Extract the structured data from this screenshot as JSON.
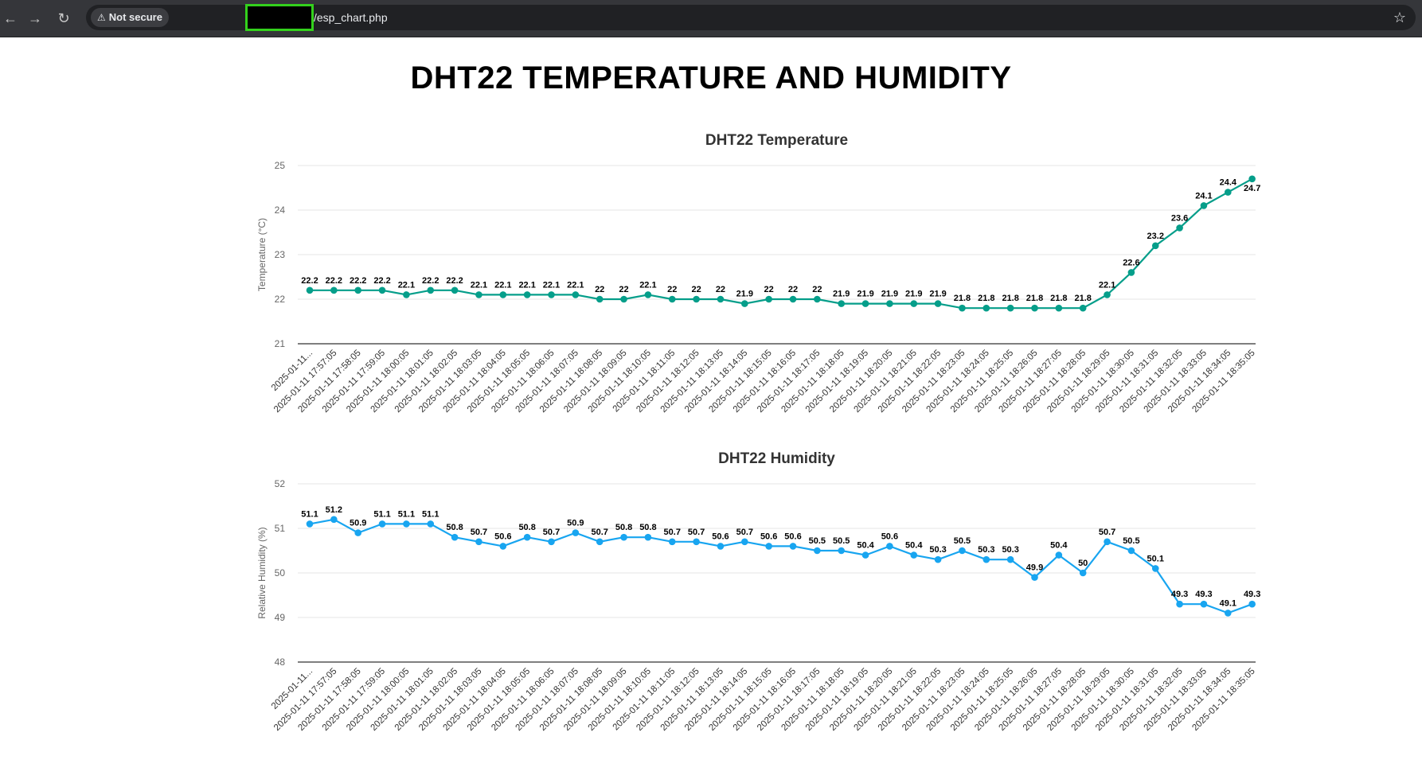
{
  "browser": {
    "security_label": "Not secure",
    "url_path": "/esp_chart.php"
  },
  "page": {
    "title": "DHT22 TEMPERATURE AND HUMIDITY"
  },
  "chart_data": [
    {
      "type": "line",
      "title": "DHT22 Temperature",
      "xlabel": "",
      "ylabel": "Temperature (°C)",
      "ylim": [
        21,
        25
      ],
      "yticks": [
        21,
        22,
        23,
        24,
        25
      ],
      "grid": true,
      "color": "#059e8a",
      "x": [
        "2025-01-11...",
        "2025-01-11 17:57:05",
        "2025-01-11 17:58:05",
        "2025-01-11 17:59:05",
        "2025-01-11 18:00:05",
        "2025-01-11 18:01:05",
        "2025-01-11 18:02:05",
        "2025-01-11 18:03:05",
        "2025-01-11 18:04:05",
        "2025-01-11 18:05:05",
        "2025-01-11 18:06:05",
        "2025-01-11 18:07:05",
        "2025-01-11 18:08:05",
        "2025-01-11 18:09:05",
        "2025-01-11 18:10:05",
        "2025-01-11 18:11:05",
        "2025-01-11 18:12:05",
        "2025-01-11 18:13:05",
        "2025-01-11 18:14:05",
        "2025-01-11 18:15:05",
        "2025-01-11 18:16:05",
        "2025-01-11 18:17:05",
        "2025-01-11 18:18:05",
        "2025-01-11 18:19:05",
        "2025-01-11 18:20:05",
        "2025-01-11 18:21:05",
        "2025-01-11 18:22:05",
        "2025-01-11 18:23:05",
        "2025-01-11 18:24:05",
        "2025-01-11 18:25:05",
        "2025-01-11 18:26:05",
        "2025-01-11 18:27:05",
        "2025-01-11 18:28:05",
        "2025-01-11 18:29:05",
        "2025-01-11 18:30:05",
        "2025-01-11 18:31:05",
        "2025-01-11 18:32:05",
        "2025-01-11 18:33:05",
        "2025-01-11 18:34:05",
        "2025-01-11 18:35:05"
      ],
      "values": [
        22.2,
        22.2,
        22.2,
        22.2,
        22.1,
        22.2,
        22.2,
        22.1,
        22.1,
        22.1,
        22.1,
        22.1,
        22,
        22,
        22.1,
        22,
        22,
        22,
        21.9,
        22,
        22,
        22,
        21.9,
        21.9,
        21.9,
        21.9,
        21.9,
        21.8,
        21.8,
        21.8,
        21.8,
        21.8,
        21.8,
        22.1,
        22.6,
        23.2,
        23.6,
        24.1,
        24.4,
        24.7
      ]
    },
    {
      "type": "line",
      "title": "DHT22 Humidity",
      "xlabel": "",
      "ylabel": "Relative Humidity (%)",
      "ylim": [
        48,
        52
      ],
      "yticks": [
        48,
        49,
        50,
        51,
        52
      ],
      "grid": true,
      "color": "#18a5f0",
      "x": [
        "2025-01-11...",
        "2025-01-11 17:57:05",
        "2025-01-11 17:58:05",
        "2025-01-11 17:59:05",
        "2025-01-11 18:00:05",
        "2025-01-11 18:01:05",
        "2025-01-11 18:02:05",
        "2025-01-11 18:03:05",
        "2025-01-11 18:04:05",
        "2025-01-11 18:05:05",
        "2025-01-11 18:06:05",
        "2025-01-11 18:07:05",
        "2025-01-11 18:08:05",
        "2025-01-11 18:09:05",
        "2025-01-11 18:10:05",
        "2025-01-11 18:11:05",
        "2025-01-11 18:12:05",
        "2025-01-11 18:13:05",
        "2025-01-11 18:14:05",
        "2025-01-11 18:15:05",
        "2025-01-11 18:16:05",
        "2025-01-11 18:17:05",
        "2025-01-11 18:18:05",
        "2025-01-11 18:19:05",
        "2025-01-11 18:20:05",
        "2025-01-11 18:21:05",
        "2025-01-11 18:22:05",
        "2025-01-11 18:23:05",
        "2025-01-11 18:24:05",
        "2025-01-11 18:25:05",
        "2025-01-11 18:26:05",
        "2025-01-11 18:27:05",
        "2025-01-11 18:28:05",
        "2025-01-11 18:29:05",
        "2025-01-11 18:30:05",
        "2025-01-11 18:31:05",
        "2025-01-11 18:32:05",
        "2025-01-11 18:33:05",
        "2025-01-11 18:34:05",
        "2025-01-11 18:35:05"
      ],
      "values": [
        51.1,
        51.2,
        50.9,
        51.1,
        51.1,
        51.1,
        50.8,
        50.7,
        50.6,
        50.8,
        50.7,
        50.9,
        50.7,
        50.8,
        50.8,
        50.7,
        50.7,
        50.6,
        50.7,
        50.6,
        50.6,
        50.5,
        50.5,
        50.4,
        50.6,
        50.4,
        50.3,
        50.5,
        50.3,
        50.3,
        49.9,
        50.4,
        50,
        50.7,
        50.5,
        50.1,
        49.3,
        49.3,
        49.1,
        49.3
      ]
    }
  ]
}
